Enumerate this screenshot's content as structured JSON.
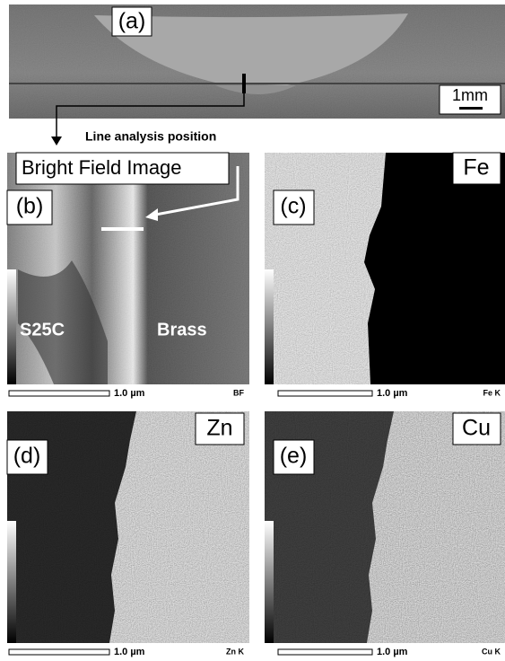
{
  "panel_a": {
    "label": "(a)",
    "scale_bar": "1mm",
    "annotation": "Line analysis  position"
  },
  "panel_b": {
    "label": "(b)",
    "title": "Bright Field Image",
    "regions": [
      "S25C",
      "Brass"
    ],
    "scale_bar": "1.0 µm",
    "detector": "BF"
  },
  "panel_c": {
    "label": "(c)",
    "element": "Fe",
    "scale_bar": "1.0 µm",
    "detector": "Fe K"
  },
  "panel_d": {
    "label": "(d)",
    "element": "Zn",
    "scale_bar": "1.0 µm",
    "detector": "Zn K"
  },
  "panel_e": {
    "label": "(e)",
    "element": "Cu",
    "scale_bar": "1.0 µm",
    "detector": "Cu K"
  }
}
